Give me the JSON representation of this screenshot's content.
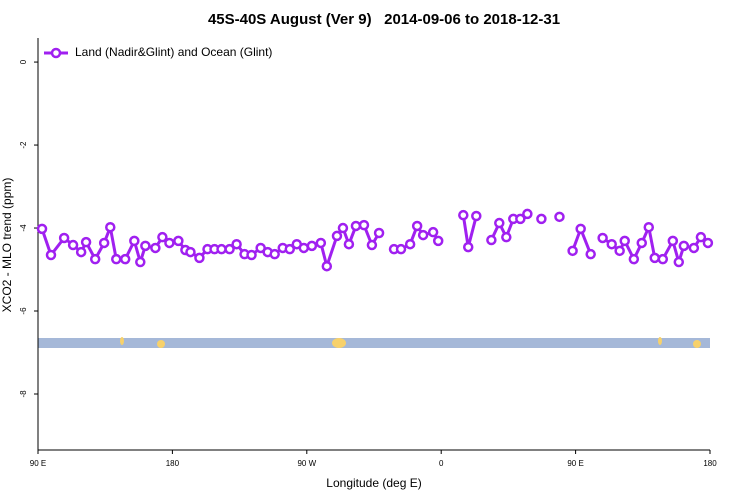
{
  "chart_data": {
    "type": "line",
    "title": "45S-40S August (Ver 9)   2014-09-06 to 2018-12-31",
    "x_label": "Longitude (deg E)",
    "y_label": "XCO2 - MLO trend (ppm)",
    "xlim": [
      90,
      540
    ],
    "ylim": [
      -9.35,
      0.58
    ],
    "xticks": [
      {
        "value": 90,
        "label": "90 E"
      },
      {
        "value": 180,
        "label": "180"
      },
      {
        "value": 270,
        "label": "90 W"
      },
      {
        "value": 360,
        "label": "0"
      },
      {
        "value": 450,
        "label": "90 E"
      },
      {
        "value": 540,
        "label": "180"
      }
    ],
    "yticks": [
      0,
      -2,
      -4,
      -6,
      -8
    ],
    "legend": "top-left",
    "grid": false,
    "x": [
      92.7,
      98.7,
      107.5,
      113.5,
      118.9,
      122.2,
      128.3,
      134.3,
      138.4,
      142.4,
      148.4,
      154.5,
      158.5,
      161.9,
      168.6,
      173.3,
      178.0,
      184.0,
      188.7,
      192.1,
      198.1,
      203.5,
      208.2,
      212.9,
      218.3,
      223.0,
      228.3,
      233.0,
      239.1,
      243.8,
      248.5,
      253.9,
      258.6,
      263.3,
      268.0,
      273.4,
      279.4,
      283.4,
      290.2,
      294.2,
      298.2,
      302.9,
      308.3,
      313.6,
      318.4,
      323.0,
      328.4,
      333.1,
      339.2,
      343.9,
      347.9,
      354.6,
      358.0,
      366.7,
      374.8,
      378.1,
      383.5,
      388.2,
      393.6,
      398.9,
      403.6,
      408.3,
      413.0,
      417.7,
      422.5,
      427.1,
      433.2,
      439.2,
      443.9,
      448.0,
      453.4,
      460.1,
      464.1,
      468.1,
      474.2,
      479.5,
      482.9,
      489.0,
      494.3,
      499.0,
      503.0,
      508.4,
      515.1,
      519.1,
      522.5,
      529.2,
      533.9,
      538.6
    ],
    "series": [
      {
        "name": "Land (Nadir&Glint) and Ocean (Glint)",
        "color": "#a020f0",
        "values": [
          -4.02,
          -4.65,
          -4.24,
          -4.41,
          -4.58,
          -4.34,
          -4.75,
          -4.36,
          -3.98,
          -4.75,
          -4.75,
          -4.31,
          -4.82,
          -4.43,
          -4.48,
          -4.22,
          -4.36,
          -4.31,
          -4.53,
          -4.58,
          -4.72,
          -4.51,
          -4.51,
          -4.51,
          -4.51,
          -4.39,
          -4.63,
          -4.65,
          -4.48,
          -4.58,
          -4.63,
          -4.48,
          -4.51,
          -4.39,
          -4.48,
          -4.43,
          -4.36,
          -4.92,
          -4.19,
          -4.0,
          -4.39,
          -3.95,
          -3.93,
          -4.41,
          -4.12,
          null,
          -4.51,
          -4.51,
          -4.39,
          -3.95,
          -4.17,
          -4.1,
          -4.31,
          null,
          -3.69,
          -4.46,
          -3.71,
          null,
          -4.29,
          -3.88,
          -4.22,
          -3.78,
          -3.78,
          -3.66,
          null,
          -3.78,
          null,
          -3.73,
          null,
          -4.55,
          -4.02,
          -4.63,
          null,
          -4.24,
          -4.39,
          -4.55,
          -4.31,
          -4.75,
          -4.36,
          -3.98,
          -4.72,
          -4.75,
          -4.31,
          -4.82,
          -4.43,
          -4.48,
          -4.22,
          -4.36
        ]
      }
    ]
  }
}
